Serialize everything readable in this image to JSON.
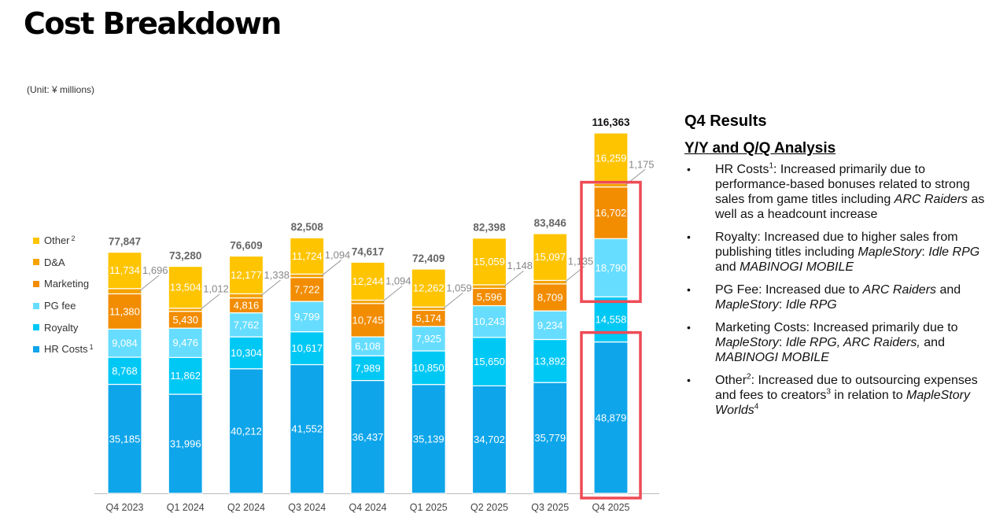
{
  "title": "Cost Breakdown",
  "unit_note": "(Unit: ¥ millions)",
  "legend": [
    {
      "label": "Other",
      "sup": "2",
      "color": "#FFC400"
    },
    {
      "label": "D&A",
      "sup": "",
      "color": "#F5A300"
    },
    {
      "label": "Marketing",
      "sup": "",
      "color": "#F28C00"
    },
    {
      "label": "PG fee",
      "sup": "",
      "color": "#66DDFF"
    },
    {
      "label": "Royalty",
      "sup": "",
      "color": "#00C8F5"
    },
    {
      "label": "HR Costs",
      "sup": "1",
      "color": "#0EA5EA"
    }
  ],
  "chart_data": {
    "type": "bar",
    "stacked": true,
    "categories": [
      "Q4 2023",
      "Q1 2024",
      "Q2 2024",
      "Q3 2024",
      "Q4 2024",
      "Q1 2025",
      "Q2 2025",
      "Q3 2025",
      "Q4 2025"
    ],
    "series": [
      {
        "name": "HR Costs",
        "color": "#0EA5EA",
        "values": [
          35185,
          31996,
          40212,
          41552,
          36437,
          35139,
          34702,
          35779,
          48879
        ]
      },
      {
        "name": "Royalty",
        "color": "#00C8F5",
        "values": [
          8768,
          11862,
          10304,
          10617,
          7989,
          10850,
          15650,
          13892,
          14558
        ]
      },
      {
        "name": "PG fee",
        "color": "#66DDFF",
        "values": [
          9084,
          9476,
          7762,
          9799,
          6108,
          7925,
          10243,
          9234,
          18790
        ]
      },
      {
        "name": "Marketing",
        "color": "#F28C00",
        "values": [
          11380,
          5430,
          4816,
          7722,
          10745,
          5174,
          5596,
          8709,
          16702
        ]
      },
      {
        "name": "D&A",
        "color": "#F5A300",
        "values": [
          1696,
          1012,
          1338,
          1094,
          1094,
          1059,
          1148,
          1135,
          1175
        ]
      },
      {
        "name": "Other",
        "color": "#FFC400",
        "values": [
          11734,
          13504,
          12177,
          11724,
          12244,
          12262,
          15059,
          15097,
          16259
        ]
      }
    ],
    "totals": [
      77847,
      73280,
      76609,
      82508,
      74617,
      72409,
      82398,
      83846,
      116363
    ],
    "highlight_color": "#EE4B55",
    "ylim": [
      0,
      130000
    ],
    "title": "",
    "xlabel": "",
    "ylabel": ""
  },
  "analysis": {
    "heading": "Q4 Results",
    "subheading": "Y/Y and Q/Q Analysis",
    "bullets": [
      [
        {
          "t": "HR Costs"
        },
        {
          "t": "1",
          "s": "sup"
        },
        {
          "t": ": Increased primarily due to performance-based bonuses related to strong sales from game titles including "
        },
        {
          "t": "ARC Raiders",
          "s": "i"
        },
        {
          "t": " as well as a headcount increase"
        }
      ],
      [
        {
          "t": "Royalty: Increased due to higher sales from publishing titles including "
        },
        {
          "t": "MapleStory",
          "s": "i"
        },
        {
          "t": ": "
        },
        {
          "t": "Idle RPG",
          "s": "i"
        },
        {
          "t": " and "
        },
        {
          "t": "MABINOGI MOBILE",
          "s": "i"
        }
      ],
      [
        {
          "t": "PG Fee: Increased due to "
        },
        {
          "t": "ARC Raiders",
          "s": "i"
        },
        {
          "t": " and "
        },
        {
          "t": "MapleStory",
          "s": "i"
        },
        {
          "t": ": "
        },
        {
          "t": "Idle RPG",
          "s": "i"
        }
      ],
      [
        {
          "t": "Marketing Costs: Increased primarily due to "
        },
        {
          "t": "MapleStory",
          "s": "i"
        },
        {
          "t": ": "
        },
        {
          "t": "Idle RPG, ARC Raiders,",
          "s": "i"
        },
        {
          "t": " and "
        },
        {
          "t": "MABINOGI MOBILE",
          "s": "i"
        }
      ],
      [
        {
          "t": "Other"
        },
        {
          "t": "2",
          "s": "sup"
        },
        {
          "t": ": Increased due to outsourcing expenses and fees to creators"
        },
        {
          "t": "3",
          "s": "sup"
        },
        {
          "t": " in relation to "
        },
        {
          "t": "MapleStory Worlds",
          "s": "i"
        },
        {
          "t": "4",
          "s": "sup"
        }
      ]
    ]
  }
}
